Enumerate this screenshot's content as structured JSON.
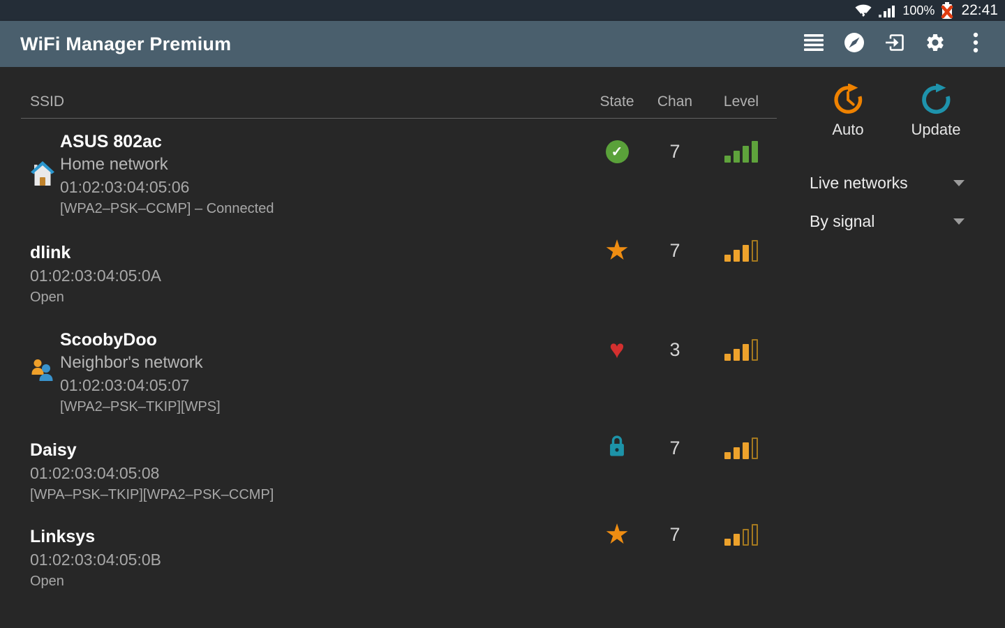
{
  "status_bar": {
    "battery_percent": "100%",
    "time": "22:41",
    "icons": [
      "wifi",
      "cell-signal",
      "battery-error"
    ]
  },
  "app_bar": {
    "title": "WiFi Manager Premium",
    "actions": [
      "channel-list",
      "browser",
      "exit",
      "settings",
      "overflow-menu"
    ]
  },
  "table": {
    "headers": {
      "ssid": "SSID",
      "state": "State",
      "chan": "Chan",
      "level": "Level"
    },
    "rows": [
      {
        "ssid": "ASUS 802ac",
        "alias": "Home network",
        "mac": "01:02:03:04:05:06",
        "security": "[WPA2–PSK–CCMP] – Connected",
        "icon": "home",
        "state": "connected",
        "chan": "7",
        "level": {
          "filled": 4,
          "total": 4,
          "color": "green"
        }
      },
      {
        "ssid": "dlink",
        "alias": "",
        "mac": "01:02:03:04:05:0A",
        "security": "Open",
        "icon": "",
        "state": "starred",
        "chan": "7",
        "level": {
          "filled": 3,
          "total": 4,
          "color": "orange"
        }
      },
      {
        "ssid": "ScoobyDoo",
        "alias": "Neighbor's network",
        "mac": "01:02:03:04:05:07",
        "security": "[WPA2–PSK–TKIP][WPS]",
        "icon": "people",
        "state": "favorite",
        "chan": "3",
        "level": {
          "filled": 3,
          "total": 4,
          "color": "orange"
        }
      },
      {
        "ssid": "Daisy",
        "alias": "",
        "mac": "01:02:03:04:05:08",
        "security": "[WPA–PSK–TKIP][WPA2–PSK–CCMP]",
        "icon": "",
        "state": "secured",
        "chan": "7",
        "level": {
          "filled": 3,
          "total": 4,
          "color": "orange"
        }
      },
      {
        "ssid": "Linksys",
        "alias": "",
        "mac": "01:02:03:04:05:0B",
        "security": "Open",
        "icon": "",
        "state": "starred",
        "chan": "7",
        "level": {
          "filled": 2,
          "total": 4,
          "color": "orange"
        }
      }
    ]
  },
  "side_panel": {
    "auto_label": "Auto",
    "update_label": "Update",
    "filter_value": "Live networks",
    "sort_value": "By signal"
  },
  "colors": {
    "app_bar": "#4a5f6d",
    "status_bar": "#242d37",
    "background": "#272727",
    "green": "#5fa33c",
    "orange": "#ef8d12",
    "amber_bars": "#eda22c",
    "teal": "#1e93ac",
    "red": "#d3302f"
  }
}
